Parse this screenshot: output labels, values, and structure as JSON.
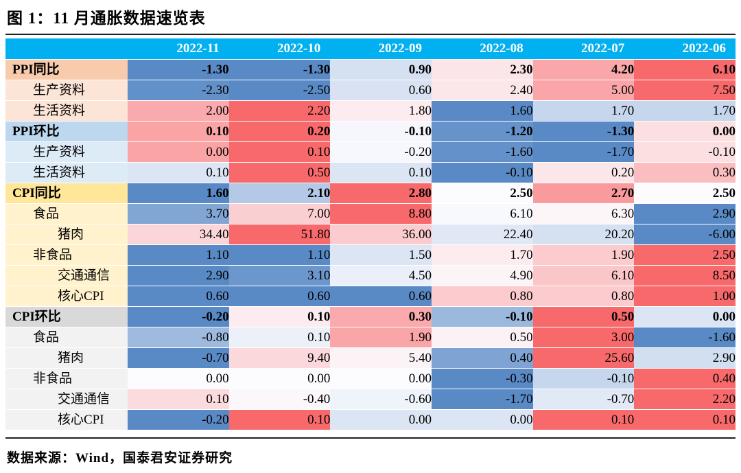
{
  "title": "图 1：11 月通胀数据速览表",
  "source_note": "数据来源：Wind，国泰君安证券研究",
  "colors": {
    "header_bg": "#00B0F0",
    "header_text": "#FFFFFF",
    "scale_min": "#5A8AC6",
    "scale_mid": "#FCFCFF",
    "scale_max": "#F8696B",
    "sections": {
      "ppi_yoy": {
        "header": "#F8CBAD",
        "child": "#FCE4D6"
      },
      "ppi_mom": {
        "header": "#BDD7EE",
        "child": "#DDEBF7"
      },
      "cpi_yoy": {
        "header": "#FFE699",
        "child": "#FFF2CC"
      },
      "cpi_mom": {
        "header": "#D9D9D9",
        "child": "#F2F2F2"
      }
    }
  },
  "chart_data": {
    "type": "heatmap",
    "title": "图 1：11 月通胀数据速览表",
    "columns": [
      "2022-11",
      "2022-10",
      "2022-09",
      "2022-08",
      "2022-07",
      "2022-06"
    ],
    "value_unit": "percent",
    "color_mapping": "per-row 3-color scale: min=#5A8AC6 (blue), 50th percentile=#FCFCFF (white), max=#F8696B (red)",
    "rows": [
      {
        "label": "PPI同比",
        "section": "ppi_yoy",
        "level": 0,
        "is_section_header": true,
        "values": [
          -1.3,
          -1.3,
          0.9,
          2.3,
          4.2,
          6.1
        ]
      },
      {
        "label": "生产资料",
        "section": "ppi_yoy",
        "level": 1,
        "is_section_header": false,
        "values": [
          -2.3,
          -2.5,
          0.6,
          2.4,
          5.0,
          7.5
        ]
      },
      {
        "label": "生活资料",
        "section": "ppi_yoy",
        "level": 1,
        "is_section_header": false,
        "values": [
          2.0,
          2.2,
          1.8,
          1.6,
          1.7,
          1.7
        ]
      },
      {
        "label": "PPI环比",
        "section": "ppi_mom",
        "level": 0,
        "is_section_header": true,
        "values": [
          0.1,
          0.2,
          -0.1,
          -1.2,
          -1.3,
          0.0
        ]
      },
      {
        "label": "生产资料",
        "section": "ppi_mom",
        "level": 1,
        "is_section_header": false,
        "values": [
          0.0,
          0.1,
          -0.2,
          -1.6,
          -1.7,
          -0.1
        ]
      },
      {
        "label": "生活资料",
        "section": "ppi_mom",
        "level": 1,
        "is_section_header": false,
        "values": [
          0.1,
          0.5,
          0.1,
          -0.1,
          0.2,
          0.3
        ]
      },
      {
        "label": "CPI同比",
        "section": "cpi_yoy",
        "level": 0,
        "is_section_header": true,
        "values": [
          1.6,
          2.1,
          2.8,
          2.5,
          2.7,
          2.5
        ]
      },
      {
        "label": "食品",
        "section": "cpi_yoy",
        "level": 1,
        "is_section_header": false,
        "values": [
          3.7,
          7.0,
          8.8,
          6.1,
          6.3,
          2.9
        ]
      },
      {
        "label": "猪肉",
        "section": "cpi_yoy",
        "level": 2,
        "is_section_header": false,
        "values": [
          34.4,
          51.8,
          36.0,
          22.4,
          20.2,
          -6.0
        ]
      },
      {
        "label": "非食品",
        "section": "cpi_yoy",
        "level": 1,
        "is_section_header": false,
        "values": [
          1.1,
          1.1,
          1.5,
          1.7,
          1.9,
          2.5
        ]
      },
      {
        "label": "交通通信",
        "section": "cpi_yoy",
        "level": 2,
        "is_section_header": false,
        "values": [
          2.9,
          3.1,
          4.5,
          4.9,
          6.1,
          8.5
        ]
      },
      {
        "label": "核心CPI",
        "section": "cpi_yoy",
        "level": 2,
        "is_section_header": false,
        "values": [
          0.6,
          0.6,
          0.6,
          0.8,
          0.8,
          1.0
        ]
      },
      {
        "label": "CPI环比",
        "section": "cpi_mom",
        "level": 0,
        "is_section_header": true,
        "values": [
          -0.2,
          0.1,
          0.3,
          -0.1,
          0.5,
          0.0
        ]
      },
      {
        "label": "食品",
        "section": "cpi_mom",
        "level": 1,
        "is_section_header": false,
        "values": [
          -0.8,
          0.1,
          1.9,
          0.5,
          3.0,
          -1.6
        ]
      },
      {
        "label": "猪肉",
        "section": "cpi_mom",
        "level": 2,
        "is_section_header": false,
        "values": [
          -0.7,
          9.4,
          5.4,
          0.4,
          25.6,
          2.9
        ]
      },
      {
        "label": "非食品",
        "section": "cpi_mom",
        "level": 1,
        "is_section_header": false,
        "values": [
          0.0,
          0.0,
          0.0,
          -0.3,
          -0.1,
          0.4
        ]
      },
      {
        "label": "交通通信",
        "section": "cpi_mom",
        "level": 2,
        "is_section_header": false,
        "values": [
          0.1,
          -0.4,
          -0.6,
          -1.7,
          -0.7,
          2.2
        ]
      },
      {
        "label": "核心CPI",
        "section": "cpi_mom",
        "level": 2,
        "is_section_header": false,
        "values": [
          -0.2,
          0.1,
          0.0,
          0.0,
          0.1,
          0.1
        ]
      }
    ]
  }
}
